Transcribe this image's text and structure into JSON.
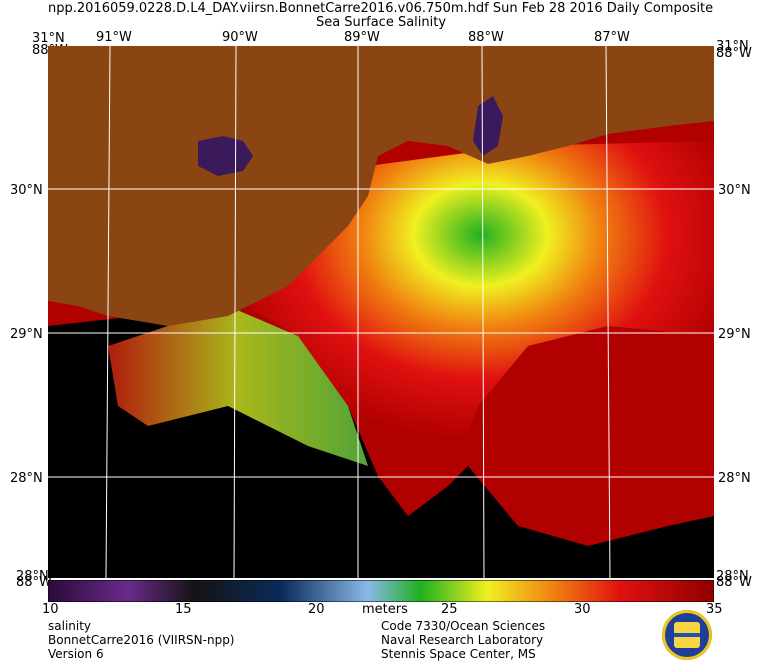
{
  "header": {
    "line1": "npp.2016059.0228.D.L4_DAY.viirsn.BonnetCarre2016.v06.750m.hdf    Sun Feb 28 2016 Daily Composite",
    "line2": "Sea Surface Salinity"
  },
  "map": {
    "lon_labels": [
      "91°W",
      "90°W",
      "89°W",
      "88°W",
      "87°W"
    ],
    "lat_labels": [
      "30°N",
      "29°N",
      "28°N"
    ],
    "corner_top_left": "31°N",
    "corner_top_right": "31°N",
    "corner_bottom_left": "28°N",
    "corner_bottom_right": "28°N",
    "corner_left_lon_top": "88°W",
    "corner_right_lon_top": "88°W",
    "corner_left_lon_bottom": "88°W",
    "corner_right_lon_bottom": "88°W",
    "colors": {
      "land": "#8b4513",
      "grid": "#ffffff",
      "ocean_high": "#b00000"
    }
  },
  "colorbar": {
    "ticks": [
      "10",
      "15",
      "20",
      "25",
      "30",
      "35"
    ],
    "unit": "meters",
    "stops": [
      "#2a0a3a",
      "#6a2a8a",
      "#141414",
      "#0a2a5a",
      "#8ab8e8",
      "#20b020",
      "#f0f020",
      "#f08010",
      "#e01010",
      "#900000"
    ]
  },
  "footer": {
    "left1": "salinity",
    "left2": "BonnetCarre2016 (VIIRSN-npp)",
    "left3": "Version 6",
    "right1": "Code 7330/Ocean Sciences",
    "right2": "Naval Research Laboratory",
    "right3": "Stennis Space Center, MS"
  }
}
